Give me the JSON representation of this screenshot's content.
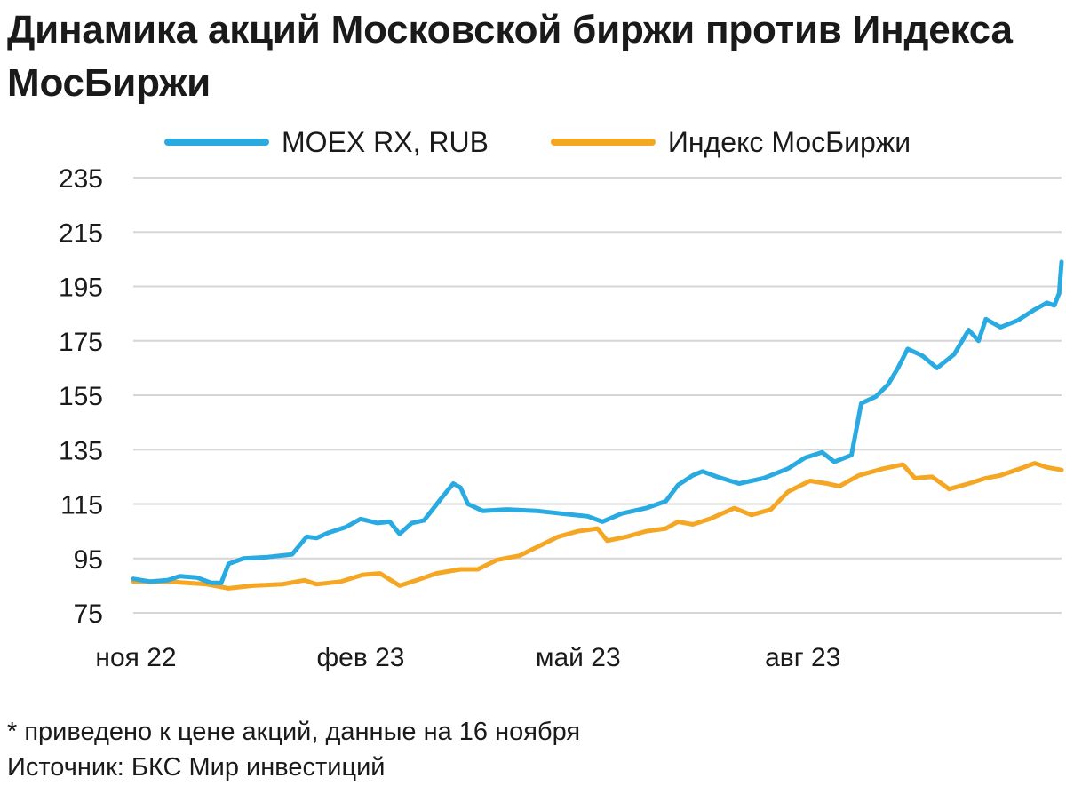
{
  "title": "Динамика акций Московской биржи против Индекса МосБиржи",
  "footnote": "*  приведено к цене акций, данные на 16 ноября",
  "source": "Источник: БКС Мир инвестиций",
  "chart_data": {
    "type": "line",
    "title": "Динамика акций Московской биржи против Индекса МосБиржи",
    "ylim": [
      75,
      235
    ],
    "yticks": [
      "235",
      "215",
      "195",
      "175",
      "155",
      "135",
      "115",
      "95",
      "75"
    ],
    "yvalues": [
      235,
      215,
      195,
      175,
      155,
      135,
      115,
      95,
      75
    ],
    "xlim": [
      "2022-11-01",
      "2023-11-16"
    ],
    "xticks": [
      {
        "label": "ноя 22",
        "date": "2022-11-01"
      },
      {
        "label": "фев 23",
        "date": "2023-02-01"
      },
      {
        "label": "май 23",
        "date": "2023-05-01"
      },
      {
        "label": "авг 23",
        "date": "2023-08-01"
      }
    ],
    "grid": true,
    "legend": "top",
    "series": [
      {
        "name": "MOEX RX, RUB",
        "color": "#29abe2",
        "points": [
          [
            "2022-11-01",
            87.5
          ],
          [
            "2022-11-08",
            86.5
          ],
          [
            "2022-11-15",
            87.0
          ],
          [
            "2022-11-20",
            88.5
          ],
          [
            "2022-11-27",
            88.0
          ],
          [
            "2022-12-03",
            86.0
          ],
          [
            "2022-12-07",
            86.0
          ],
          [
            "2022-12-10",
            93.0
          ],
          [
            "2022-12-16",
            95.0
          ],
          [
            "2022-12-26",
            95.5
          ],
          [
            "2023-01-05",
            96.5
          ],
          [
            "2023-01-11",
            103.0
          ],
          [
            "2023-01-15",
            102.5
          ],
          [
            "2023-01-20",
            104.5
          ],
          [
            "2023-01-27",
            106.5
          ],
          [
            "2023-02-02",
            109.5
          ],
          [
            "2023-02-09",
            108.0
          ],
          [
            "2023-02-14",
            108.5
          ],
          [
            "2023-02-18",
            104.0
          ],
          [
            "2023-02-23",
            108.0
          ],
          [
            "2023-02-28",
            109.0
          ],
          [
            "2023-03-07",
            117.0
          ],
          [
            "2023-03-12",
            122.5
          ],
          [
            "2023-03-15",
            121.0
          ],
          [
            "2023-03-18",
            115.0
          ],
          [
            "2023-03-24",
            112.5
          ],
          [
            "2023-04-03",
            113.0
          ],
          [
            "2023-04-15",
            112.5
          ],
          [
            "2023-04-25",
            111.5
          ],
          [
            "2023-05-06",
            110.5
          ],
          [
            "2023-05-12",
            108.5
          ],
          [
            "2023-05-20",
            111.5
          ],
          [
            "2023-05-30",
            113.5
          ],
          [
            "2023-06-07",
            116.0
          ],
          [
            "2023-06-12",
            122.0
          ],
          [
            "2023-06-18",
            125.5
          ],
          [
            "2023-06-22",
            127.0
          ],
          [
            "2023-06-28",
            125.0
          ],
          [
            "2023-07-07",
            122.5
          ],
          [
            "2023-07-17",
            124.5
          ],
          [
            "2023-07-27",
            128.0
          ],
          [
            "2023-08-03",
            132.0
          ],
          [
            "2023-08-10",
            134.0
          ],
          [
            "2023-08-15",
            130.5
          ],
          [
            "2023-08-22",
            133.0
          ],
          [
            "2023-08-26",
            152.0
          ],
          [
            "2023-09-01",
            154.5
          ],
          [
            "2023-09-06",
            159.0
          ],
          [
            "2023-09-10",
            165.0
          ],
          [
            "2023-09-14",
            172.0
          ],
          [
            "2023-09-20",
            169.5
          ],
          [
            "2023-09-26",
            165.0
          ],
          [
            "2023-10-03",
            170.0
          ],
          [
            "2023-10-09",
            179.0
          ],
          [
            "2023-10-13",
            175.0
          ],
          [
            "2023-10-16",
            183.0
          ],
          [
            "2023-10-22",
            180.0
          ],
          [
            "2023-10-29",
            182.5
          ],
          [
            "2023-11-05",
            186.5
          ],
          [
            "2023-11-10",
            189.0
          ],
          [
            "2023-11-13",
            188.0
          ],
          [
            "2023-11-15",
            192.5
          ],
          [
            "2023-11-16",
            204.0
          ]
        ]
      },
      {
        "name": "Индекс МосБиржи",
        "color": "#f5a623",
        "points": [
          [
            "2022-11-01",
            86.5
          ],
          [
            "2022-11-15",
            86.5
          ],
          [
            "2022-12-01",
            85.5
          ],
          [
            "2022-12-10",
            84.0
          ],
          [
            "2022-12-20",
            85.0
          ],
          [
            "2023-01-01",
            85.5
          ],
          [
            "2023-01-10",
            87.0
          ],
          [
            "2023-01-15",
            85.5
          ],
          [
            "2023-01-25",
            86.5
          ],
          [
            "2023-02-03",
            89.0
          ],
          [
            "2023-02-10",
            89.5
          ],
          [
            "2023-02-18",
            85.0
          ],
          [
            "2023-02-25",
            87.0
          ],
          [
            "2023-03-05",
            89.5
          ],
          [
            "2023-03-15",
            91.0
          ],
          [
            "2023-03-22",
            91.0
          ],
          [
            "2023-03-30",
            94.5
          ],
          [
            "2023-04-08",
            96.0
          ],
          [
            "2023-04-16",
            99.5
          ],
          [
            "2023-04-24",
            103.0
          ],
          [
            "2023-05-02",
            105.0
          ],
          [
            "2023-05-10",
            106.0
          ],
          [
            "2023-05-14",
            101.5
          ],
          [
            "2023-05-22",
            103.0
          ],
          [
            "2023-05-30",
            105.0
          ],
          [
            "2023-06-07",
            106.0
          ],
          [
            "2023-06-12",
            108.5
          ],
          [
            "2023-06-18",
            107.5
          ],
          [
            "2023-06-25",
            109.5
          ],
          [
            "2023-07-05",
            113.5
          ],
          [
            "2023-07-12",
            111.0
          ],
          [
            "2023-07-20",
            113.0
          ],
          [
            "2023-07-27",
            119.5
          ],
          [
            "2023-08-05",
            123.5
          ],
          [
            "2023-08-12",
            122.5
          ],
          [
            "2023-08-17",
            121.5
          ],
          [
            "2023-08-25",
            125.5
          ],
          [
            "2023-09-04",
            128.0
          ],
          [
            "2023-09-12",
            129.5
          ],
          [
            "2023-09-17",
            124.5
          ],
          [
            "2023-09-24",
            125.0
          ],
          [
            "2023-10-01",
            120.5
          ],
          [
            "2023-10-09",
            122.5
          ],
          [
            "2023-10-16",
            124.5
          ],
          [
            "2023-10-22",
            125.5
          ],
          [
            "2023-10-30",
            128.0
          ],
          [
            "2023-11-05",
            130.0
          ],
          [
            "2023-11-10",
            128.5
          ],
          [
            "2023-11-16",
            127.5
          ]
        ]
      }
    ]
  }
}
